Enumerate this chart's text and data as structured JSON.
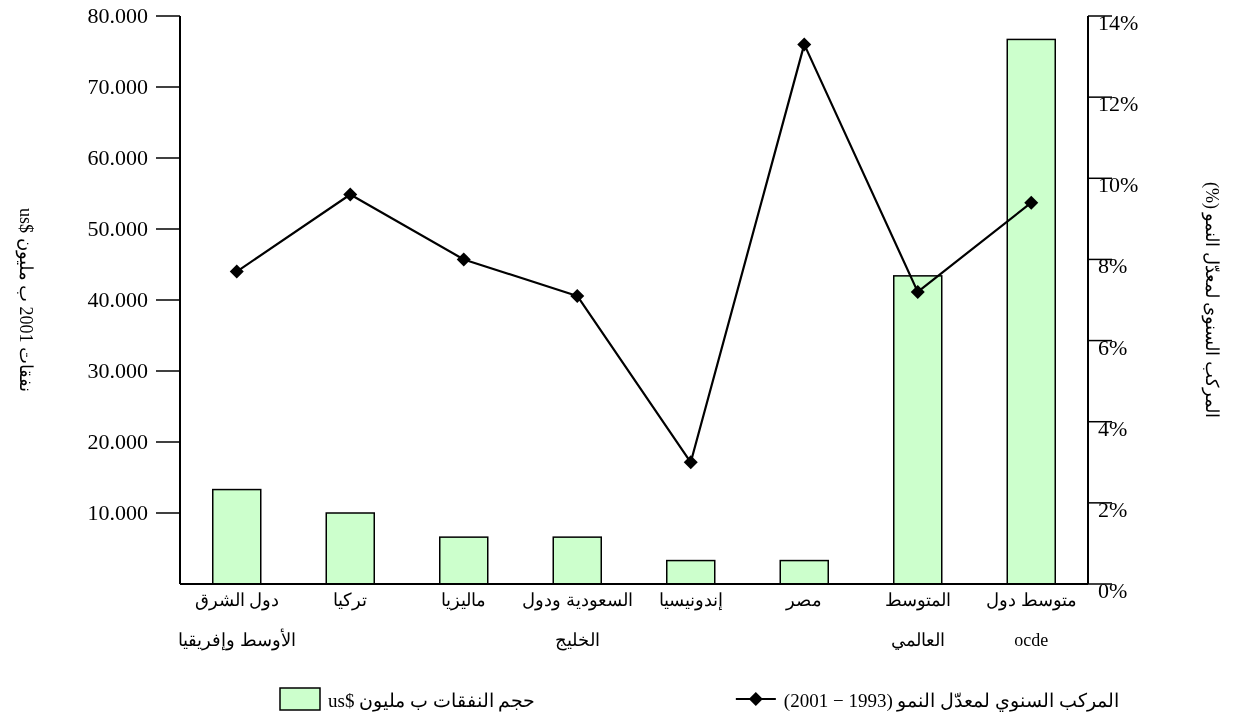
{
  "chart_data": {
    "type": "bar",
    "categories": [
      "دول الشرق\nالأوسط وإفريقيا",
      "تركيا",
      "ماليزيا",
      "السعودية ودول\nالخليج",
      "إندونيسيا",
      "مصر",
      "المتوسط\nالعالمي",
      "متوسط دول\nocde"
    ],
    "series": [
      {
        "name": "حجم النفقات ب مليون $us",
        "type": "bar",
        "color": "#ccffcc",
        "values": [
          13300,
          10000,
          6600,
          6600,
          3300,
          3300,
          43400,
          76700
        ]
      },
      {
        "name": "المركب السنوي لمعدّل النمو (1993 − 2001)",
        "type": "line",
        "axis": "y2",
        "color": "#000000",
        "marker": "diamond",
        "values": [
          7.7,
          9.6,
          8.0,
          7.1,
          3.0,
          13.3,
          7.2,
          9.4
        ]
      }
    ],
    "ylabel": "نفقات 2001 ب مليون $us",
    "y2label": "المركب السنوى لمعدّل النمو (%)",
    "ylim": [
      0,
      80000
    ],
    "yticks": [
      {
        "value": 10000,
        "label": "10.000"
      },
      {
        "value": 20000,
        "label": "20.000"
      },
      {
        "value": 30000,
        "label": "30.000"
      },
      {
        "value": 40000,
        "label": "40.000"
      },
      {
        "value": 50000,
        "label": "50.000"
      },
      {
        "value": 60000,
        "label": "60.000"
      },
      {
        "value": 70000,
        "label": "70.000"
      },
      {
        "value": 80000,
        "label": "80.000"
      }
    ],
    "y2lim": [
      0,
      14
    ],
    "y2ticks": [
      {
        "value": 0,
        "label": "0%"
      },
      {
        "value": 2,
        "label": "2%"
      },
      {
        "value": 4,
        "label": "4%"
      },
      {
        "value": 6,
        "label": "6%"
      },
      {
        "value": 8,
        "label": "8%"
      },
      {
        "value": 10,
        "label": "10%"
      },
      {
        "value": 12,
        "label": "12%"
      },
      {
        "value": 14,
        "label": "14%"
      }
    ],
    "grid": false,
    "legend": "bottom"
  }
}
